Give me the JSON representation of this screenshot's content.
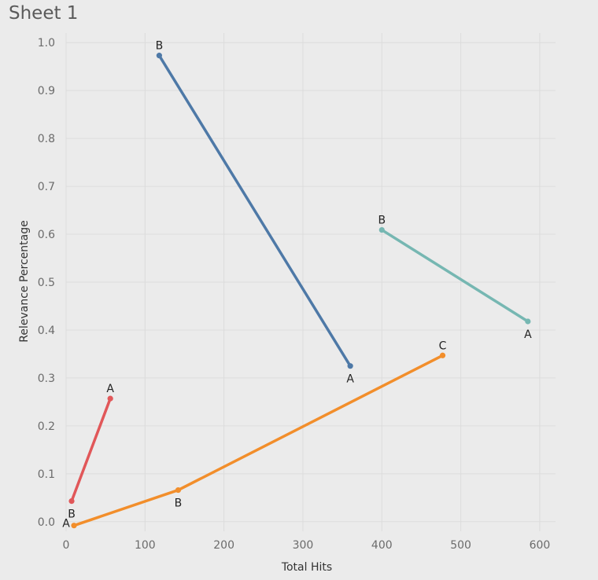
{
  "sheet": {
    "title": "Sheet 1"
  },
  "chart_data": {
    "type": "line",
    "title": "Sheet 1",
    "xlabel": "Total Hits",
    "ylabel": "Relevance Percentage",
    "xlim": [
      0,
      620
    ],
    "ylim": [
      -0.02,
      1.02
    ],
    "xticks": [
      "0",
      "100",
      "200",
      "300",
      "400",
      "500",
      "600"
    ],
    "yticks": [
      "0.0",
      "0.1",
      "0.2",
      "0.3",
      "0.4",
      "0.5",
      "0.6",
      "0.7",
      "0.8",
      "0.9",
      "1.0"
    ],
    "grid": true,
    "series": [
      {
        "color": "#4e79a7",
        "points": [
          {
            "label": "B",
            "x": 118,
            "y": 0.973
          },
          {
            "label": "A",
            "x": 360,
            "y": 0.325
          }
        ]
      },
      {
        "color": "#76b7b2",
        "points": [
          {
            "label": "B",
            "x": 400,
            "y": 0.609
          },
          {
            "label": "A",
            "x": 585,
            "y": 0.418
          }
        ]
      },
      {
        "color": "#e15759",
        "points": [
          {
            "label": "B",
            "x": 7,
            "y": 0.043
          },
          {
            "label": "A",
            "x": 56,
            "y": 0.257
          }
        ]
      },
      {
        "color": "#f28e2b",
        "points": [
          {
            "label": "A",
            "x": 10,
            "y": -0.008
          },
          {
            "label": "B",
            "x": 142,
            "y": 0.066
          },
          {
            "label": "C",
            "x": 477,
            "y": 0.347
          }
        ]
      }
    ]
  }
}
